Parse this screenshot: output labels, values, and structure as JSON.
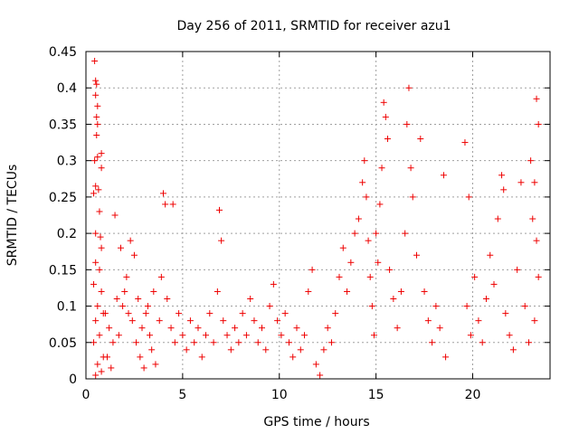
{
  "chart_data": {
    "type": "scatter",
    "title": "Day 256 of 2011, SRMTID for receiver azu1",
    "xlabel": "GPS time / hours",
    "ylabel": "SRMTID / TECUs",
    "xlim": [
      0,
      24
    ],
    "ylim": [
      0,
      0.45
    ],
    "xticks": [
      0,
      5,
      10,
      15,
      20
    ],
    "xtick_labels": [
      "0",
      "5",
      "10",
      "15",
      "20"
    ],
    "yticks": [
      0,
      0.05,
      0.1,
      0.15,
      0.2,
      0.25,
      0.3,
      0.35,
      0.4,
      0.45
    ],
    "ytick_labels": [
      "0",
      "0.05",
      "0.1",
      "0.15",
      "0.2",
      "0.25",
      "0.3",
      "0.35",
      "0.4",
      "0.45"
    ],
    "grid": true,
    "marker": "plus",
    "marker_color": "#ee0000",
    "series": [
      {
        "name": "SRMTID",
        "points": [
          [
            0.45,
            0.437
          ],
          [
            0.5,
            0.41
          ],
          [
            0.55,
            0.405
          ],
          [
            0.5,
            0.39
          ],
          [
            0.6,
            0.375
          ],
          [
            0.55,
            0.36
          ],
          [
            0.6,
            0.35
          ],
          [
            0.55,
            0.335
          ],
          [
            0.45,
            0.3
          ],
          [
            0.6,
            0.305
          ],
          [
            0.8,
            0.31
          ],
          [
            0.8,
            0.29
          ],
          [
            0.5,
            0.265
          ],
          [
            0.65,
            0.26
          ],
          [
            0.4,
            0.255
          ],
          [
            0.7,
            0.23
          ],
          [
            0.5,
            0.2
          ],
          [
            0.75,
            0.195
          ],
          [
            0.8,
            0.18
          ],
          [
            0.5,
            0.16
          ],
          [
            0.7,
            0.15
          ],
          [
            0.4,
            0.13
          ],
          [
            0.8,
            0.12
          ],
          [
            0.6,
            0.1
          ],
          [
            0.9,
            0.09
          ],
          [
            0.5,
            0.08
          ],
          [
            0.7,
            0.06
          ],
          [
            0.4,
            0.05
          ],
          [
            0.9,
            0.03
          ],
          [
            0.6,
            0.02
          ],
          [
            0.8,
            0.01
          ],
          [
            0.5,
            0.005
          ],
          [
            1.0,
            0.09
          ],
          [
            1.2,
            0.07
          ],
          [
            1.4,
            0.05
          ],
          [
            1.6,
            0.11
          ],
          [
            1.5,
            0.225
          ],
          [
            1.8,
            0.18
          ],
          [
            2.0,
            0.12
          ],
          [
            2.2,
            0.09
          ],
          [
            1.1,
            0.03
          ],
          [
            1.3,
            0.015
          ],
          [
            1.7,
            0.06
          ],
          [
            1.9,
            0.1
          ],
          [
            2.1,
            0.14
          ],
          [
            2.3,
            0.19
          ],
          [
            2.5,
            0.17
          ],
          [
            2.4,
            0.08
          ],
          [
            2.6,
            0.05
          ],
          [
            2.8,
            0.03
          ],
          [
            3.0,
            0.015
          ],
          [
            2.7,
            0.11
          ],
          [
            2.9,
            0.07
          ],
          [
            3.1,
            0.09
          ],
          [
            3.3,
            0.06
          ],
          [
            3.5,
            0.12
          ],
          [
            3.2,
            0.1
          ],
          [
            3.4,
            0.04
          ],
          [
            3.6,
            0.02
          ],
          [
            3.8,
            0.08
          ],
          [
            3.9,
            0.14
          ],
          [
            4.0,
            0.255
          ],
          [
            4.1,
            0.24
          ],
          [
            4.5,
            0.24
          ],
          [
            4.2,
            0.11
          ],
          [
            4.4,
            0.07
          ],
          [
            4.6,
            0.05
          ],
          [
            4.8,
            0.09
          ],
          [
            5.0,
            0.06
          ],
          [
            5.2,
            0.04
          ],
          [
            5.4,
            0.08
          ],
          [
            5.6,
            0.05
          ],
          [
            5.8,
            0.07
          ],
          [
            6.0,
            0.03
          ],
          [
            6.2,
            0.06
          ],
          [
            6.4,
            0.09
          ],
          [
            6.6,
            0.05
          ],
          [
            6.8,
            0.12
          ],
          [
            6.9,
            0.232
          ],
          [
            7.0,
            0.19
          ],
          [
            7.1,
            0.08
          ],
          [
            7.3,
            0.06
          ],
          [
            7.5,
            0.04
          ],
          [
            7.7,
            0.07
          ],
          [
            7.9,
            0.05
          ],
          [
            8.1,
            0.09
          ],
          [
            8.3,
            0.06
          ],
          [
            8.5,
            0.11
          ],
          [
            8.7,
            0.08
          ],
          [
            8.9,
            0.05
          ],
          [
            9.1,
            0.07
          ],
          [
            9.3,
            0.04
          ],
          [
            9.5,
            0.1
          ],
          [
            9.7,
            0.13
          ],
          [
            9.9,
            0.08
          ],
          [
            10.1,
            0.06
          ],
          [
            10.3,
            0.09
          ],
          [
            10.5,
            0.05
          ],
          [
            10.7,
            0.03
          ],
          [
            10.9,
            0.07
          ],
          [
            11.1,
            0.04
          ],
          [
            11.3,
            0.06
          ],
          [
            11.5,
            0.12
          ],
          [
            11.7,
            0.15
          ],
          [
            11.9,
            0.02
          ],
          [
            12.1,
            0.005
          ],
          [
            12.3,
            0.04
          ],
          [
            12.5,
            0.07
          ],
          [
            12.7,
            0.05
          ],
          [
            12.9,
            0.09
          ],
          [
            13.1,
            0.14
          ],
          [
            13.3,
            0.18
          ],
          [
            13.5,
            0.12
          ],
          [
            13.7,
            0.16
          ],
          [
            13.9,
            0.2
          ],
          [
            14.1,
            0.22
          ],
          [
            14.3,
            0.27
          ],
          [
            14.4,
            0.3
          ],
          [
            14.5,
            0.25
          ],
          [
            14.6,
            0.19
          ],
          [
            14.7,
            0.14
          ],
          [
            14.8,
            0.1
          ],
          [
            14.9,
            0.06
          ],
          [
            15.0,
            0.2
          ],
          [
            15.1,
            0.16
          ],
          [
            15.2,
            0.24
          ],
          [
            15.3,
            0.29
          ],
          [
            15.4,
            0.38
          ],
          [
            15.5,
            0.36
          ],
          [
            15.6,
            0.33
          ],
          [
            15.7,
            0.15
          ],
          [
            15.9,
            0.11
          ],
          [
            16.1,
            0.07
          ],
          [
            16.3,
            0.12
          ],
          [
            16.5,
            0.2
          ],
          [
            16.6,
            0.35
          ],
          [
            16.7,
            0.4
          ],
          [
            16.8,
            0.29
          ],
          [
            16.9,
            0.25
          ],
          [
            17.1,
            0.17
          ],
          [
            17.3,
            0.33
          ],
          [
            17.5,
            0.12
          ],
          [
            17.7,
            0.08
          ],
          [
            17.9,
            0.05
          ],
          [
            18.1,
            0.1
          ],
          [
            18.3,
            0.07
          ],
          [
            18.5,
            0.28
          ],
          [
            18.6,
            0.03
          ],
          [
            19.6,
            0.325
          ],
          [
            19.8,
            0.25
          ],
          [
            19.7,
            0.1
          ],
          [
            19.9,
            0.06
          ],
          [
            20.1,
            0.14
          ],
          [
            20.3,
            0.08
          ],
          [
            20.5,
            0.05
          ],
          [
            20.7,
            0.11
          ],
          [
            20.9,
            0.17
          ],
          [
            21.1,
            0.13
          ],
          [
            21.3,
            0.22
          ],
          [
            21.5,
            0.28
          ],
          [
            21.6,
            0.26
          ],
          [
            21.7,
            0.09
          ],
          [
            21.9,
            0.06
          ],
          [
            22.1,
            0.04
          ],
          [
            22.3,
            0.15
          ],
          [
            22.5,
            0.27
          ],
          [
            22.7,
            0.1
          ],
          [
            22.9,
            0.05
          ],
          [
            23.0,
            0.3
          ],
          [
            23.1,
            0.22
          ],
          [
            23.2,
            0.27
          ],
          [
            23.3,
            0.385
          ],
          [
            23.4,
            0.35
          ],
          [
            23.3,
            0.19
          ],
          [
            23.4,
            0.14
          ],
          [
            23.2,
            0.08
          ]
        ]
      }
    ]
  }
}
